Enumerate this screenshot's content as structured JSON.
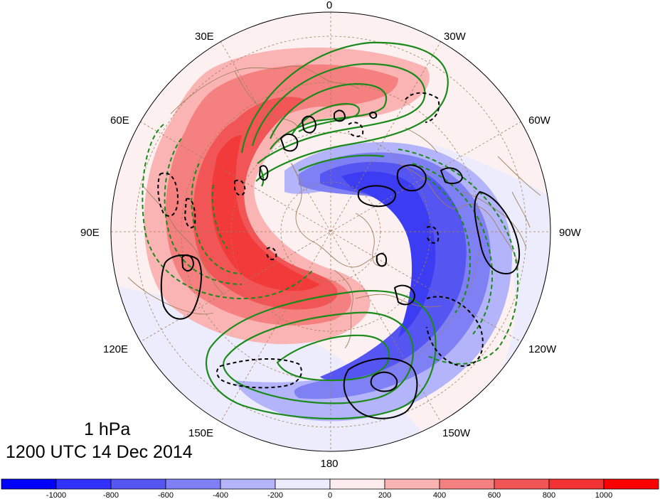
{
  "map": {
    "level": "1 hPa",
    "valid_time": "1200 UTC 14 Dec 2014",
    "longitude_labels": {
      "top": "0",
      "top_right": "30W",
      "right_upper": "60W",
      "right": "90W",
      "right_lower": "120W",
      "bottom_right": "150W",
      "bottom": "180",
      "bottom_left": "150E",
      "left_lower": "120E",
      "left": "90E",
      "left_upper": "60E",
      "top_left": "30E"
    },
    "colors": {
      "positive_fill": "#f03030",
      "negative_fill": "#2020f0",
      "green_contour": "#1a8a1a",
      "black_contour": "#000000",
      "coastline": "#a08060",
      "grid": "#a08060"
    }
  },
  "colorbar": {
    "tick_labels": [
      "-1000",
      "-800",
      "-600",
      "-400",
      "-200",
      "0",
      "200",
      "400",
      "600",
      "800",
      "1000"
    ],
    "colors": [
      "#0000ff",
      "#3232ff",
      "#5555f2",
      "#8080f5",
      "#b4b4fa",
      "#ececfd",
      "#fdecec",
      "#fab4b4",
      "#f58080",
      "#f25555",
      "#f23232",
      "#ff0000"
    ]
  }
}
